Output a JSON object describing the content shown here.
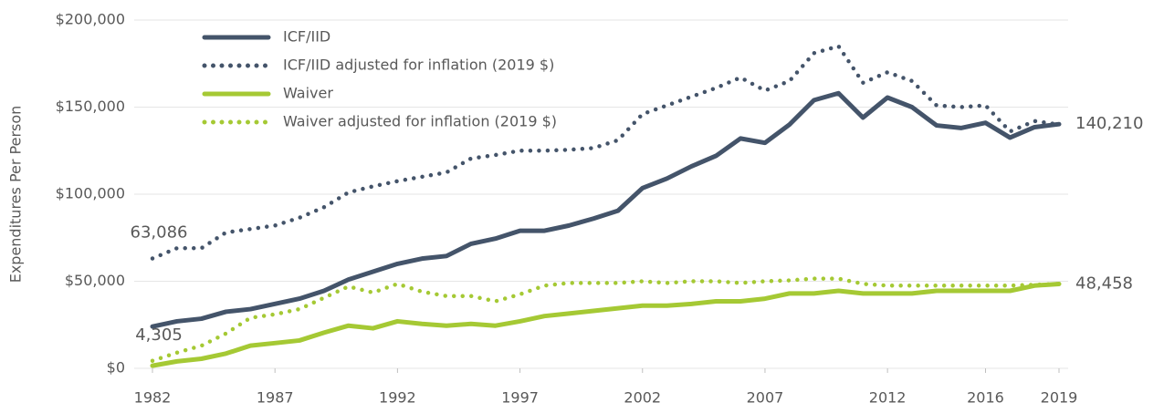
{
  "chart_data": {
    "type": "line",
    "y_label": "Expenditures Per Person",
    "x": [
      1982,
      1983,
      1984,
      1985,
      1986,
      1987,
      1988,
      1989,
      1990,
      1991,
      1992,
      1993,
      1994,
      1995,
      1996,
      1997,
      1998,
      1999,
      2000,
      2001,
      2002,
      2003,
      2004,
      2005,
      2006,
      2007,
      2008,
      2009,
      2010,
      2011,
      2012,
      2013,
      2014,
      2015,
      2016,
      2017,
      2018,
      2019
    ],
    "xlim": [
      1982,
      2019
    ],
    "xticks": [
      1982,
      1987,
      1992,
      1997,
      2002,
      2007,
      2012,
      2016,
      2019
    ],
    "ylim": [
      0,
      200000
    ],
    "yticks": [
      {
        "value": 0,
        "label": "$0"
      },
      {
        "value": 50000,
        "label": "$50,000"
      },
      {
        "value": 100000,
        "label": "$100,000"
      },
      {
        "value": 150000,
        "label": "$150,000"
      },
      {
        "value": 200000,
        "label": "$200,000"
      }
    ],
    "grid": true,
    "legend": "top-left",
    "series": [
      {
        "name": "ICF/IID",
        "color": "#44546a",
        "style": "solid",
        "values": [
          24000,
          27000,
          28500,
          32500,
          34000,
          37000,
          40000,
          44500,
          51000,
          55500,
          60000,
          63000,
          64500,
          71500,
          74500,
          79000,
          79000,
          82000,
          86000,
          90500,
          103500,
          109000,
          116000,
          122000,
          132000,
          129500,
          140000,
          154000,
          158000,
          144000,
          155500,
          150000,
          139500,
          138000,
          141000,
          132500,
          138500,
          140210
        ]
      },
      {
        "name": "ICF/IID adjusted for inflation (2019 $)",
        "color": "#44546a",
        "style": "dotted",
        "values": [
          63086,
          69000,
          69000,
          78000,
          80000,
          82000,
          86500,
          92500,
          101000,
          104500,
          107500,
          110000,
          112500,
          120500,
          122500,
          125000,
          125000,
          125500,
          126500,
          131000,
          146000,
          151000,
          156000,
          161000,
          167000,
          159500,
          165000,
          181000,
          185000,
          164000,
          170000,
          165000,
          151000,
          150000,
          151000,
          136000,
          142000,
          140000
        ]
      },
      {
        "name": "Waiver",
        "color": "#a5c934",
        "style": "solid",
        "values": [
          1500,
          4000,
          5500,
          8500,
          13000,
          14500,
          16000,
          20500,
          24500,
          23000,
          27000,
          25500,
          24500,
          25500,
          24500,
          27000,
          30000,
          31500,
          33000,
          34500,
          36000,
          36000,
          37000,
          38500,
          38500,
          40000,
          43000,
          43000,
          44500,
          43000,
          43000,
          43000,
          44500,
          44500,
          44500,
          44500,
          47500,
          48458
        ]
      },
      {
        "name": "Waiver adjusted for inflation (2019 $)",
        "color": "#a5c934",
        "style": "dotted",
        "values": [
          4305,
          9000,
          13000,
          20000,
          29000,
          31000,
          34000,
          40500,
          47000,
          43500,
          48500,
          44000,
          41500,
          41500,
          38500,
          42500,
          47500,
          49000,
          49000,
          49000,
          50000,
          49000,
          50000,
          50000,
          49000,
          50000,
          50500,
          51500,
          51500,
          48500,
          47500,
          47500,
          47500,
          47500,
          47500,
          47500,
          48000,
          48458
        ]
      }
    ],
    "annotations": [
      {
        "text": "63,086",
        "x": 1982,
        "y": 63086,
        "anchor": "above"
      },
      {
        "text": "4,305",
        "x": 1982,
        "y": 4305,
        "anchor": "above"
      },
      {
        "text": "140,210",
        "x": 2019,
        "y": 140210,
        "anchor": "right"
      },
      {
        "text": "48,458",
        "x": 2019,
        "y": 48458,
        "anchor": "right"
      }
    ]
  }
}
